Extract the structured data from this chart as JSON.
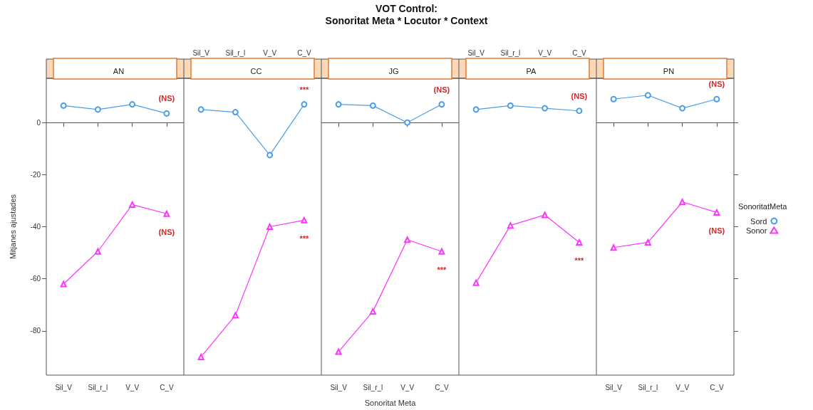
{
  "chart_data": [
    {
      "type": "line",
      "subtitle": "AN",
      "ylabel": "Mitjanes ajustades",
      "categories": [
        "Sil_V",
        "Sil_r_l",
        "V_V",
        "C_V"
      ],
      "ylim": [
        -97,
        17
      ],
      "yticks": [
        -80,
        -60,
        -40,
        -20,
        0
      ],
      "series": [
        {
          "color": "#4a9ee8",
          "marker": "circle",
          "values": [
            6.5,
            5,
            7,
            3.5
          ]
        },
        {
          "color": "#ff33ff",
          "marker": "triangle",
          "values": [
            -62,
            -49.5,
            -31.5,
            -35
          ]
        }
      ],
      "annotations": [
        "(NS)",
        "(NS)"
      ]
    },
    {
      "type": "line",
      "subtitle": "CC",
      "categories": [
        "Sil_V",
        "Sil_r_l",
        "V_V",
        "C_V"
      ],
      "ylim": [
        -97,
        17
      ],
      "yticks": [
        -80,
        -60,
        -40,
        -20,
        0
      ],
      "tick_labels": "x",
      "series": [
        {
          "color": "#4a9ee8",
          "marker": "circle",
          "values": [
            5,
            4,
            -12.5,
            7
          ]
        },
        {
          "color": "#ff33ff",
          "marker": "triangle",
          "values": [
            -90,
            -74,
            -40,
            -37.5
          ]
        }
      ],
      "annotations": [
        "***",
        "***"
      ]
    },
    {
      "type": "line",
      "title": "VOT Control:\nSonoritat Meta * Locutor * Context",
      "subtitle": "JG",
      "xlabel": "Sonoritat Meta",
      "categories": [
        "Sil_V",
        "Sil_r_l",
        "V_V",
        "C_V"
      ],
      "ylim": [
        -97,
        17
      ],
      "yticks": [
        -80,
        -60,
        -40,
        -20,
        0
      ],
      "tick_labels": "x",
      "series": [
        {
          "color": "#4a9ee8",
          "marker": "circle",
          "values": [
            7,
            6.5,
            0,
            7
          ]
        },
        {
          "color": "#ff33ff",
          "marker": "triangle",
          "values": [
            -88,
            -72.5,
            -45,
            -49.5
          ]
        }
      ],
      "annotations": [
        "(NS)",
        "***"
      ]
    },
    {
      "type": "line",
      "subtitle": "PA",
      "categories": [
        "Sil_V",
        "Sil_r_l",
        "V_V",
        "C_V"
      ],
      "ylim": [
        -97,
        17
      ],
      "yticks": [
        -80,
        -60,
        -40,
        -20,
        0
      ],
      "tick_labels": "x",
      "series": [
        {
          "color": "#4a9ee8",
          "marker": "circle",
          "values": [
            5,
            6.5,
            5.5,
            4.5
          ]
        },
        {
          "color": "#ff33ff",
          "marker": "triangle",
          "values": [
            -61.5,
            -39.5,
            -35.5,
            -46
          ]
        }
      ],
      "annotations": [
        "(NS)",
        "***"
      ]
    },
    {
      "type": "line",
      "subtitle": "PN",
      "categories": [
        "Sil_V",
        "Sil_r_l",
        "V_V",
        "C_V"
      ],
      "ylim": [
        -97,
        17
      ],
      "yticks": [
        -80,
        -60,
        -40,
        -20,
        0
      ],
      "tick_labels": "x",
      "legend": "right",
      "legend_title": "SonoritatMeta",
      "series": [
        {
          "name": "Sord",
          "color": "#4a9ee8",
          "marker": "circle",
          "values": [
            9,
            10.5,
            5.5,
            9
          ]
        },
        {
          "name": "Sonor",
          "color": "#ff33ff",
          "marker": "triangle",
          "values": [
            -48,
            -46,
            -30.5,
            -34.5
          ]
        }
      ],
      "annotations": [
        "(NS)",
        "(NS)"
      ]
    }
  ]
}
